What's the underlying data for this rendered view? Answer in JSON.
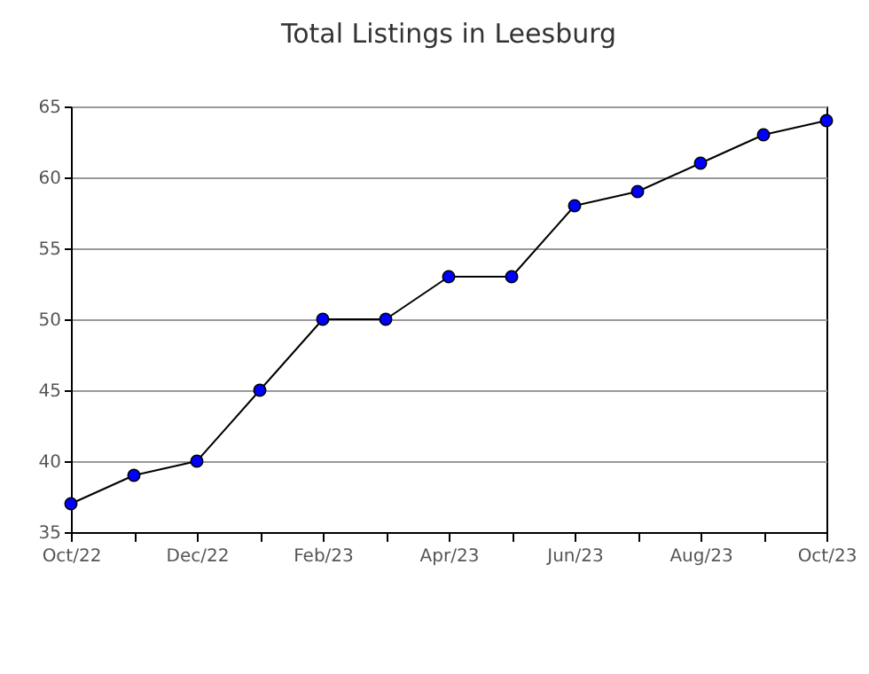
{
  "chart_data": {
    "type": "line",
    "title": "Total Listings in Leesburg",
    "categories": [
      "Oct/22",
      null,
      "Dec/22",
      null,
      "Feb/23",
      null,
      "Apr/23",
      null,
      "Jun/23",
      null,
      "Aug/23",
      null,
      "Oct/23"
    ],
    "series": [
      {
        "color": "#0000ff",
        "values": [
          37,
          39,
          40,
          45,
          50,
          50,
          53,
          53,
          58,
          59,
          61,
          63,
          64
        ]
      }
    ],
    "ylim": [
      35,
      65
    ],
    "yticks": [
      35,
      40,
      45,
      50,
      55,
      60,
      65
    ],
    "grid": "y",
    "marker": "circle",
    "line_style": "solid"
  }
}
